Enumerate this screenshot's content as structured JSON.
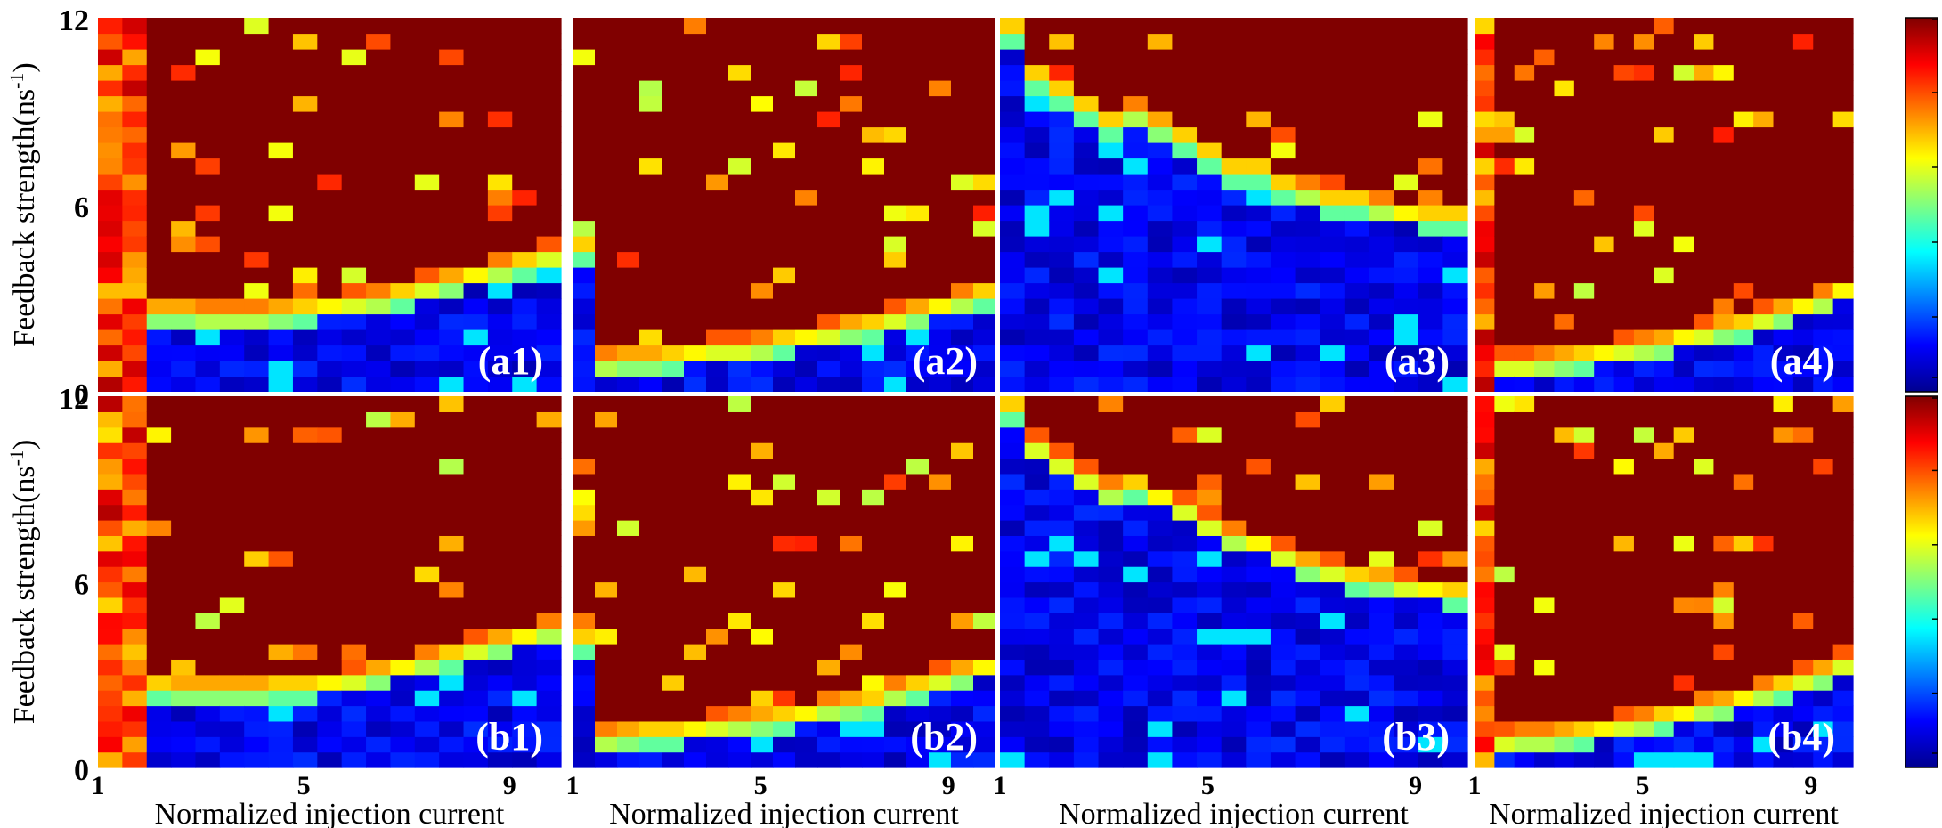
{
  "chart_data": {
    "type": "heatmap",
    "layout": "2x4 grid of heatmap panels with two shared colorbars",
    "colormap": "jet",
    "axes": {
      "xlabel": "Normalized injection current",
      "ylabel": "Feedback strength(ns",
      "ylabel_sup": "-1",
      "ylabel_close": ")",
      "xlim": [
        1,
        10
      ],
      "ylim": [
        0,
        12
      ],
      "xticks": [
        "1",
        "5",
        "9"
      ],
      "yticks": [
        "0",
        "6",
        "12"
      ]
    },
    "colorbar": {
      "range": [
        0,
        1
      ],
      "ticks": [
        "0",
        "0.2",
        "0.4",
        "0.6",
        "0.8",
        "1"
      ]
    },
    "grid_shape": [
      24,
      19
    ],
    "panels": [
      {
        "label": "(a1)",
        "row": 0,
        "col": 0,
        "boundary_y": [
          6.0,
          2.4,
          2.4,
          2.4,
          2.3,
          2.3,
          2.3,
          2.4,
          2.5,
          2.6,
          2.7,
          2.8,
          3.0,
          3.2,
          3.4,
          3.6,
          3.8,
          4.0,
          4.2
        ],
        "chaos_x_min": 1.8
      },
      {
        "label": "(a2)",
        "row": 0,
        "col": 1,
        "boundary_y": [
          4.5,
          0.8,
          0.9,
          0.9,
          1.0,
          1.1,
          1.2,
          1.2,
          1.3,
          1.5,
          1.6,
          1.7,
          1.9,
          2.0,
          2.2,
          2.4,
          2.6,
          2.8,
          3.0
        ],
        "chaos_x_min": 1.1
      },
      {
        "label": "(a3)",
        "row": 0,
        "col": 2,
        "boundary_y": [
          11.5,
          10.0,
          9.5,
          9.0,
          8.5,
          8.8,
          8.4,
          8.0,
          7.5,
          7.0,
          7.0,
          6.5,
          6.3,
          6.0,
          6.0,
          5.8,
          5.6,
          5.5,
          5.5
        ],
        "chaos_x_min": 1.2
      },
      {
        "label": "(a4)",
        "row": 0,
        "col": 3,
        "boundary_y": [
          12.0,
          0.7,
          0.7,
          0.8,
          0.9,
          1.0,
          1.1,
          1.2,
          1.3,
          1.4,
          1.6,
          1.7,
          1.9,
          2.0,
          2.2,
          2.4,
          2.6,
          2.8,
          3.1
        ],
        "chaos_x_min": 1.3
      },
      {
        "label": "(b1)",
        "row": 1,
        "col": 0,
        "boundary_y": [
          6.0,
          2.5,
          2.5,
          2.4,
          2.4,
          2.4,
          2.4,
          2.5,
          2.5,
          2.6,
          2.7,
          2.9,
          3.1,
          3.3,
          3.5,
          3.7,
          3.9,
          4.1,
          4.3
        ],
        "chaos_x_min": 1.8
      },
      {
        "label": "(b2)",
        "row": 1,
        "col": 1,
        "boundary_y": [
          4.0,
          0.8,
          0.9,
          1.0,
          1.0,
          1.1,
          1.2,
          1.3,
          1.4,
          1.5,
          1.6,
          1.8,
          1.9,
          2.0,
          2.3,
          2.5,
          2.7,
          2.9,
          3.1
        ],
        "chaos_x_min": 1.1
      },
      {
        "label": "(b3)",
        "row": 1,
        "col": 2,
        "boundary_y": [
          11.5,
          10.2,
          9.7,
          9.2,
          8.8,
          9.0,
          8.6,
          8.2,
          7.7,
          7.3,
          7.1,
          6.7,
          6.4,
          6.2,
          6.0,
          5.9,
          5.7,
          5.6,
          5.5
        ],
        "chaos_x_min": 1.2
      },
      {
        "label": "(b4)",
        "row": 1,
        "col": 3,
        "boundary_y": [
          12.0,
          0.7,
          0.8,
          0.8,
          0.9,
          1.0,
          1.1,
          1.2,
          1.3,
          1.5,
          1.6,
          1.8,
          1.9,
          2.1,
          2.3,
          2.5,
          2.7,
          2.9,
          3.2
        ],
        "chaos_x_min": 1.3
      }
    ]
  }
}
